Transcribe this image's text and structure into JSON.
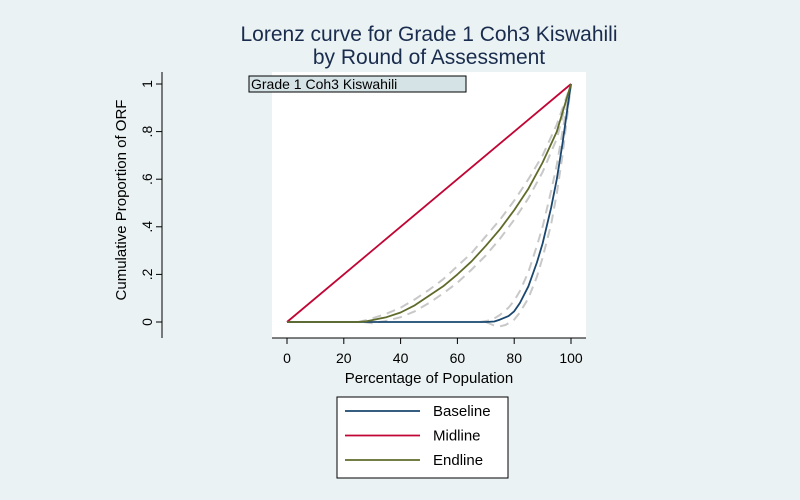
{
  "chart_data": {
    "type": "line",
    "title": [
      "Lorenz curve for Grade 1 Coh3 Kiswahili",
      "by Round of Assessment"
    ],
    "subtitle_box": "Grade 1 Coh3 Kiswahili",
    "xlabel": "Percentage of Population",
    "ylabel": "Cumulative Proportion of ORF",
    "xlim": [
      0,
      100
    ],
    "ylim": [
      0,
      1
    ],
    "x_ticks": [
      0,
      20,
      40,
      60,
      80,
      100
    ],
    "x_tick_labels": [
      "0",
      "20",
      "40",
      "60",
      "80",
      "100"
    ],
    "y_ticks": [
      0,
      0.2,
      0.4,
      0.6,
      0.8,
      1
    ],
    "y_tick_labels": [
      "0",
      ".2",
      ".4",
      ".6",
      ".8",
      "1"
    ],
    "grid": false,
    "legend_position": "bottom",
    "series": [
      {
        "name": "Baseline",
        "color": "#1a476f",
        "points": [
          [
            0,
            0
          ],
          [
            20,
            0
          ],
          [
            40,
            0
          ],
          [
            60,
            0
          ],
          [
            70,
            0
          ],
          [
            73,
            0.002
          ],
          [
            75,
            0.01
          ],
          [
            78,
            0.025
          ],
          [
            80,
            0.045
          ],
          [
            82,
            0.08
          ],
          [
            85,
            0.15
          ],
          [
            88,
            0.25
          ],
          [
            90,
            0.33
          ],
          [
            93,
            0.48
          ],
          [
            95,
            0.6
          ],
          [
            97,
            0.75
          ],
          [
            99,
            0.92
          ],
          [
            100,
            1
          ]
        ]
      },
      {
        "name": "Midline",
        "color": "#c10534",
        "points": [
          [
            0,
            0
          ],
          [
            100,
            1
          ]
        ]
      },
      {
        "name": "Endline",
        "color": "#5f6b2a",
        "points": [
          [
            0,
            0
          ],
          [
            25,
            0
          ],
          [
            28,
            0.003
          ],
          [
            30,
            0.008
          ],
          [
            35,
            0.02
          ],
          [
            40,
            0.04
          ],
          [
            45,
            0.07
          ],
          [
            50,
            0.11
          ],
          [
            55,
            0.15
          ],
          [
            60,
            0.2
          ],
          [
            65,
            0.255
          ],
          [
            70,
            0.32
          ],
          [
            75,
            0.39
          ],
          [
            80,
            0.47
          ],
          [
            85,
            0.56
          ],
          [
            90,
            0.67
          ],
          [
            95,
            0.8
          ],
          [
            100,
            1
          ]
        ]
      }
    ],
    "confidence_bands": [
      {
        "for": "Baseline",
        "color": "#c8c8c8",
        "lower": [
          [
            70,
            0
          ],
          [
            73,
            -0.015
          ],
          [
            75,
            -0.018
          ],
          [
            77,
            -0.012
          ],
          [
            80,
            0.01
          ],
          [
            82,
            0.04
          ],
          [
            85,
            0.1
          ],
          [
            88,
            0.19
          ],
          [
            90,
            0.27
          ],
          [
            93,
            0.41
          ],
          [
            95,
            0.54
          ],
          [
            97,
            0.7
          ],
          [
            99,
            0.9
          ],
          [
            100,
            1
          ]
        ],
        "upper": [
          [
            68,
            0
          ],
          [
            72,
            0.008
          ],
          [
            75,
            0.03
          ],
          [
            78,
            0.06
          ],
          [
            80,
            0.09
          ],
          [
            82,
            0.13
          ],
          [
            85,
            0.21
          ],
          [
            88,
            0.32
          ],
          [
            90,
            0.4
          ],
          [
            93,
            0.55
          ],
          [
            95,
            0.66
          ],
          [
            97,
            0.8
          ],
          [
            99,
            0.94
          ],
          [
            100,
            1
          ]
        ]
      },
      {
        "for": "Endline",
        "color": "#c8c8c8",
        "lower": [
          [
            27,
            0
          ],
          [
            30,
            -0.005
          ],
          [
            35,
            0.005
          ],
          [
            40,
            0.02
          ],
          [
            45,
            0.045
          ],
          [
            50,
            0.08
          ],
          [
            55,
            0.12
          ],
          [
            60,
            0.165
          ],
          [
            65,
            0.22
          ],
          [
            70,
            0.28
          ],
          [
            75,
            0.35
          ],
          [
            80,
            0.43
          ],
          [
            85,
            0.52
          ],
          [
            90,
            0.63
          ],
          [
            95,
            0.77
          ],
          [
            100,
            1
          ]
        ],
        "upper": [
          [
            25,
            0
          ],
          [
            28,
            0.008
          ],
          [
            30,
            0.015
          ],
          [
            35,
            0.035
          ],
          [
            40,
            0.06
          ],
          [
            45,
            0.095
          ],
          [
            50,
            0.135
          ],
          [
            55,
            0.18
          ],
          [
            60,
            0.235
          ],
          [
            65,
            0.29
          ],
          [
            70,
            0.36
          ],
          [
            75,
            0.43
          ],
          [
            80,
            0.51
          ],
          [
            85,
            0.6
          ],
          [
            90,
            0.7
          ],
          [
            95,
            0.83
          ],
          [
            100,
            1
          ]
        ]
      }
    ]
  }
}
